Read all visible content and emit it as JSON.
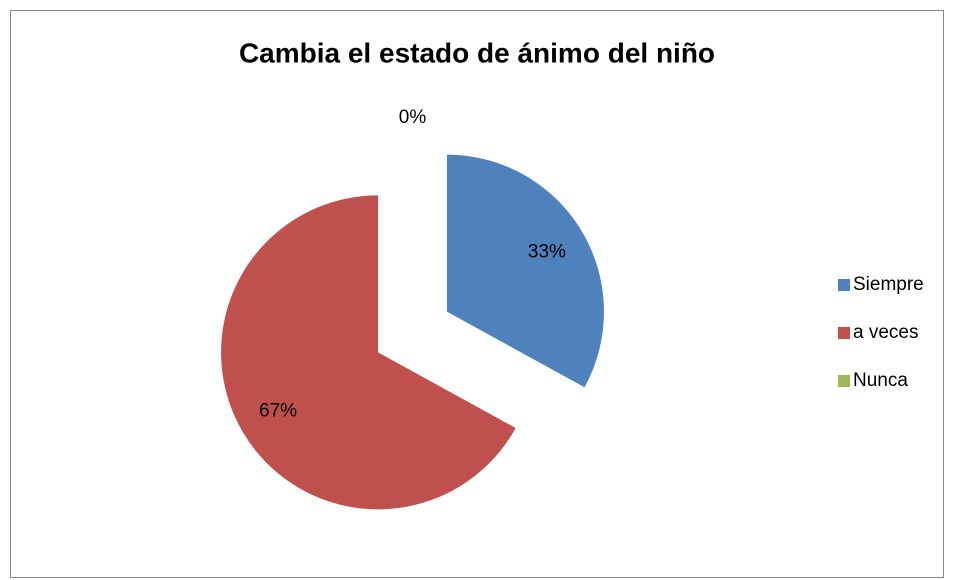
{
  "chart_data": {
    "type": "pie",
    "title": "Cambia el estado de ánimo del niño",
    "categories": [
      "Siempre",
      "a veces",
      "Nunca"
    ],
    "values": [
      33,
      67,
      0
    ],
    "value_labels": [
      "33%",
      "67%",
      "0%"
    ],
    "colors": [
      "#4f81bd",
      "#c0504d",
      "#9bbb59"
    ],
    "legend": "right"
  }
}
